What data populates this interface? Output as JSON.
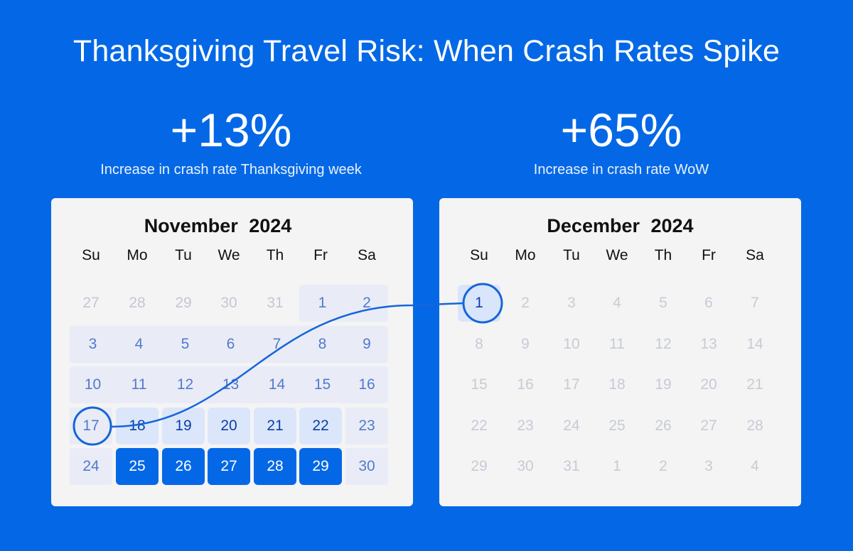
{
  "title": "Thanksgiving Travel Risk: When Crash Rates Spike",
  "stats": [
    {
      "value": "+13%",
      "label": "Increase in crash rate Thanksgiving week"
    },
    {
      "value": "+65%",
      "label": "Increase in crash rate WoW"
    }
  ],
  "weekdays": [
    "Su",
    "Mo",
    "Tu",
    "We",
    "Th",
    "Fr",
    "Sa"
  ],
  "colors": {
    "background": "#0468e6",
    "card": "#f4f4f5",
    "thanksgiving_week": "#0468e6",
    "week_before": "#dbe6fb",
    "month_days": "#e9ecf6",
    "connector": "#1565d8"
  },
  "november": {
    "title": "November  2024",
    "weeks": [
      [
        {
          "d": "27",
          "s": "out"
        },
        {
          "d": "28",
          "s": "out"
        },
        {
          "d": "29",
          "s": "out"
        },
        {
          "d": "30",
          "s": "out"
        },
        {
          "d": "31",
          "s": "out"
        },
        {
          "d": "1",
          "s": "wk"
        },
        {
          "d": "2",
          "s": "wk"
        }
      ],
      [
        {
          "d": "3",
          "s": "wk"
        },
        {
          "d": "4",
          "s": "wk"
        },
        {
          "d": "5",
          "s": "wk"
        },
        {
          "d": "6",
          "s": "wk"
        },
        {
          "d": "7",
          "s": "wk"
        },
        {
          "d": "8",
          "s": "wk"
        },
        {
          "d": "9",
          "s": "wk"
        }
      ],
      [
        {
          "d": "10",
          "s": "wk"
        },
        {
          "d": "11",
          "s": "wk"
        },
        {
          "d": "12",
          "s": "wk"
        },
        {
          "d": "13",
          "s": "wk"
        },
        {
          "d": "14",
          "s": "wk"
        },
        {
          "d": "15",
          "s": "wk"
        },
        {
          "d": "16",
          "s": "wk"
        }
      ],
      [
        {
          "d": "17",
          "s": "circled"
        },
        {
          "d": "18",
          "s": "hl"
        },
        {
          "d": "19",
          "s": "hl"
        },
        {
          "d": "20",
          "s": "hl"
        },
        {
          "d": "21",
          "s": "hl"
        },
        {
          "d": "22",
          "s": "hl"
        },
        {
          "d": "23",
          "s": "wk"
        }
      ],
      [
        {
          "d": "24",
          "s": "wk"
        },
        {
          "d": "25",
          "s": "strong"
        },
        {
          "d": "26",
          "s": "strong"
        },
        {
          "d": "27",
          "s": "strong"
        },
        {
          "d": "28",
          "s": "strong"
        },
        {
          "d": "29",
          "s": "strong"
        },
        {
          "d": "30",
          "s": "wk"
        }
      ]
    ]
  },
  "december": {
    "title": "December  2024",
    "weeks": [
      [
        {
          "d": "1",
          "s": "circled"
        },
        {
          "d": "2",
          "s": "out"
        },
        {
          "d": "3",
          "s": "out"
        },
        {
          "d": "4",
          "s": "out"
        },
        {
          "d": "5",
          "s": "out"
        },
        {
          "d": "6",
          "s": "out"
        },
        {
          "d": "7",
          "s": "out"
        }
      ],
      [
        {
          "d": "8",
          "s": "out"
        },
        {
          "d": "9",
          "s": "out"
        },
        {
          "d": "10",
          "s": "out"
        },
        {
          "d": "11",
          "s": "out"
        },
        {
          "d": "12",
          "s": "out"
        },
        {
          "d": "13",
          "s": "out"
        },
        {
          "d": "14",
          "s": "out"
        }
      ],
      [
        {
          "d": "15",
          "s": "out"
        },
        {
          "d": "16",
          "s": "out"
        },
        {
          "d": "17",
          "s": "out"
        },
        {
          "d": "18",
          "s": "out"
        },
        {
          "d": "19",
          "s": "out"
        },
        {
          "d": "20",
          "s": "out"
        },
        {
          "d": "21",
          "s": "out"
        }
      ],
      [
        {
          "d": "22",
          "s": "out"
        },
        {
          "d": "23",
          "s": "out"
        },
        {
          "d": "24",
          "s": "out"
        },
        {
          "d": "25",
          "s": "out"
        },
        {
          "d": "26",
          "s": "out"
        },
        {
          "d": "27",
          "s": "out"
        },
        {
          "d": "28",
          "s": "out"
        }
      ],
      [
        {
          "d": "29",
          "s": "out"
        },
        {
          "d": "30",
          "s": "out"
        },
        {
          "d": "31",
          "s": "out"
        },
        {
          "d": "1",
          "s": "out"
        },
        {
          "d": "2",
          "s": "out"
        },
        {
          "d": "3",
          "s": "out"
        },
        {
          "d": "4",
          "s": "out"
        }
      ]
    ]
  }
}
